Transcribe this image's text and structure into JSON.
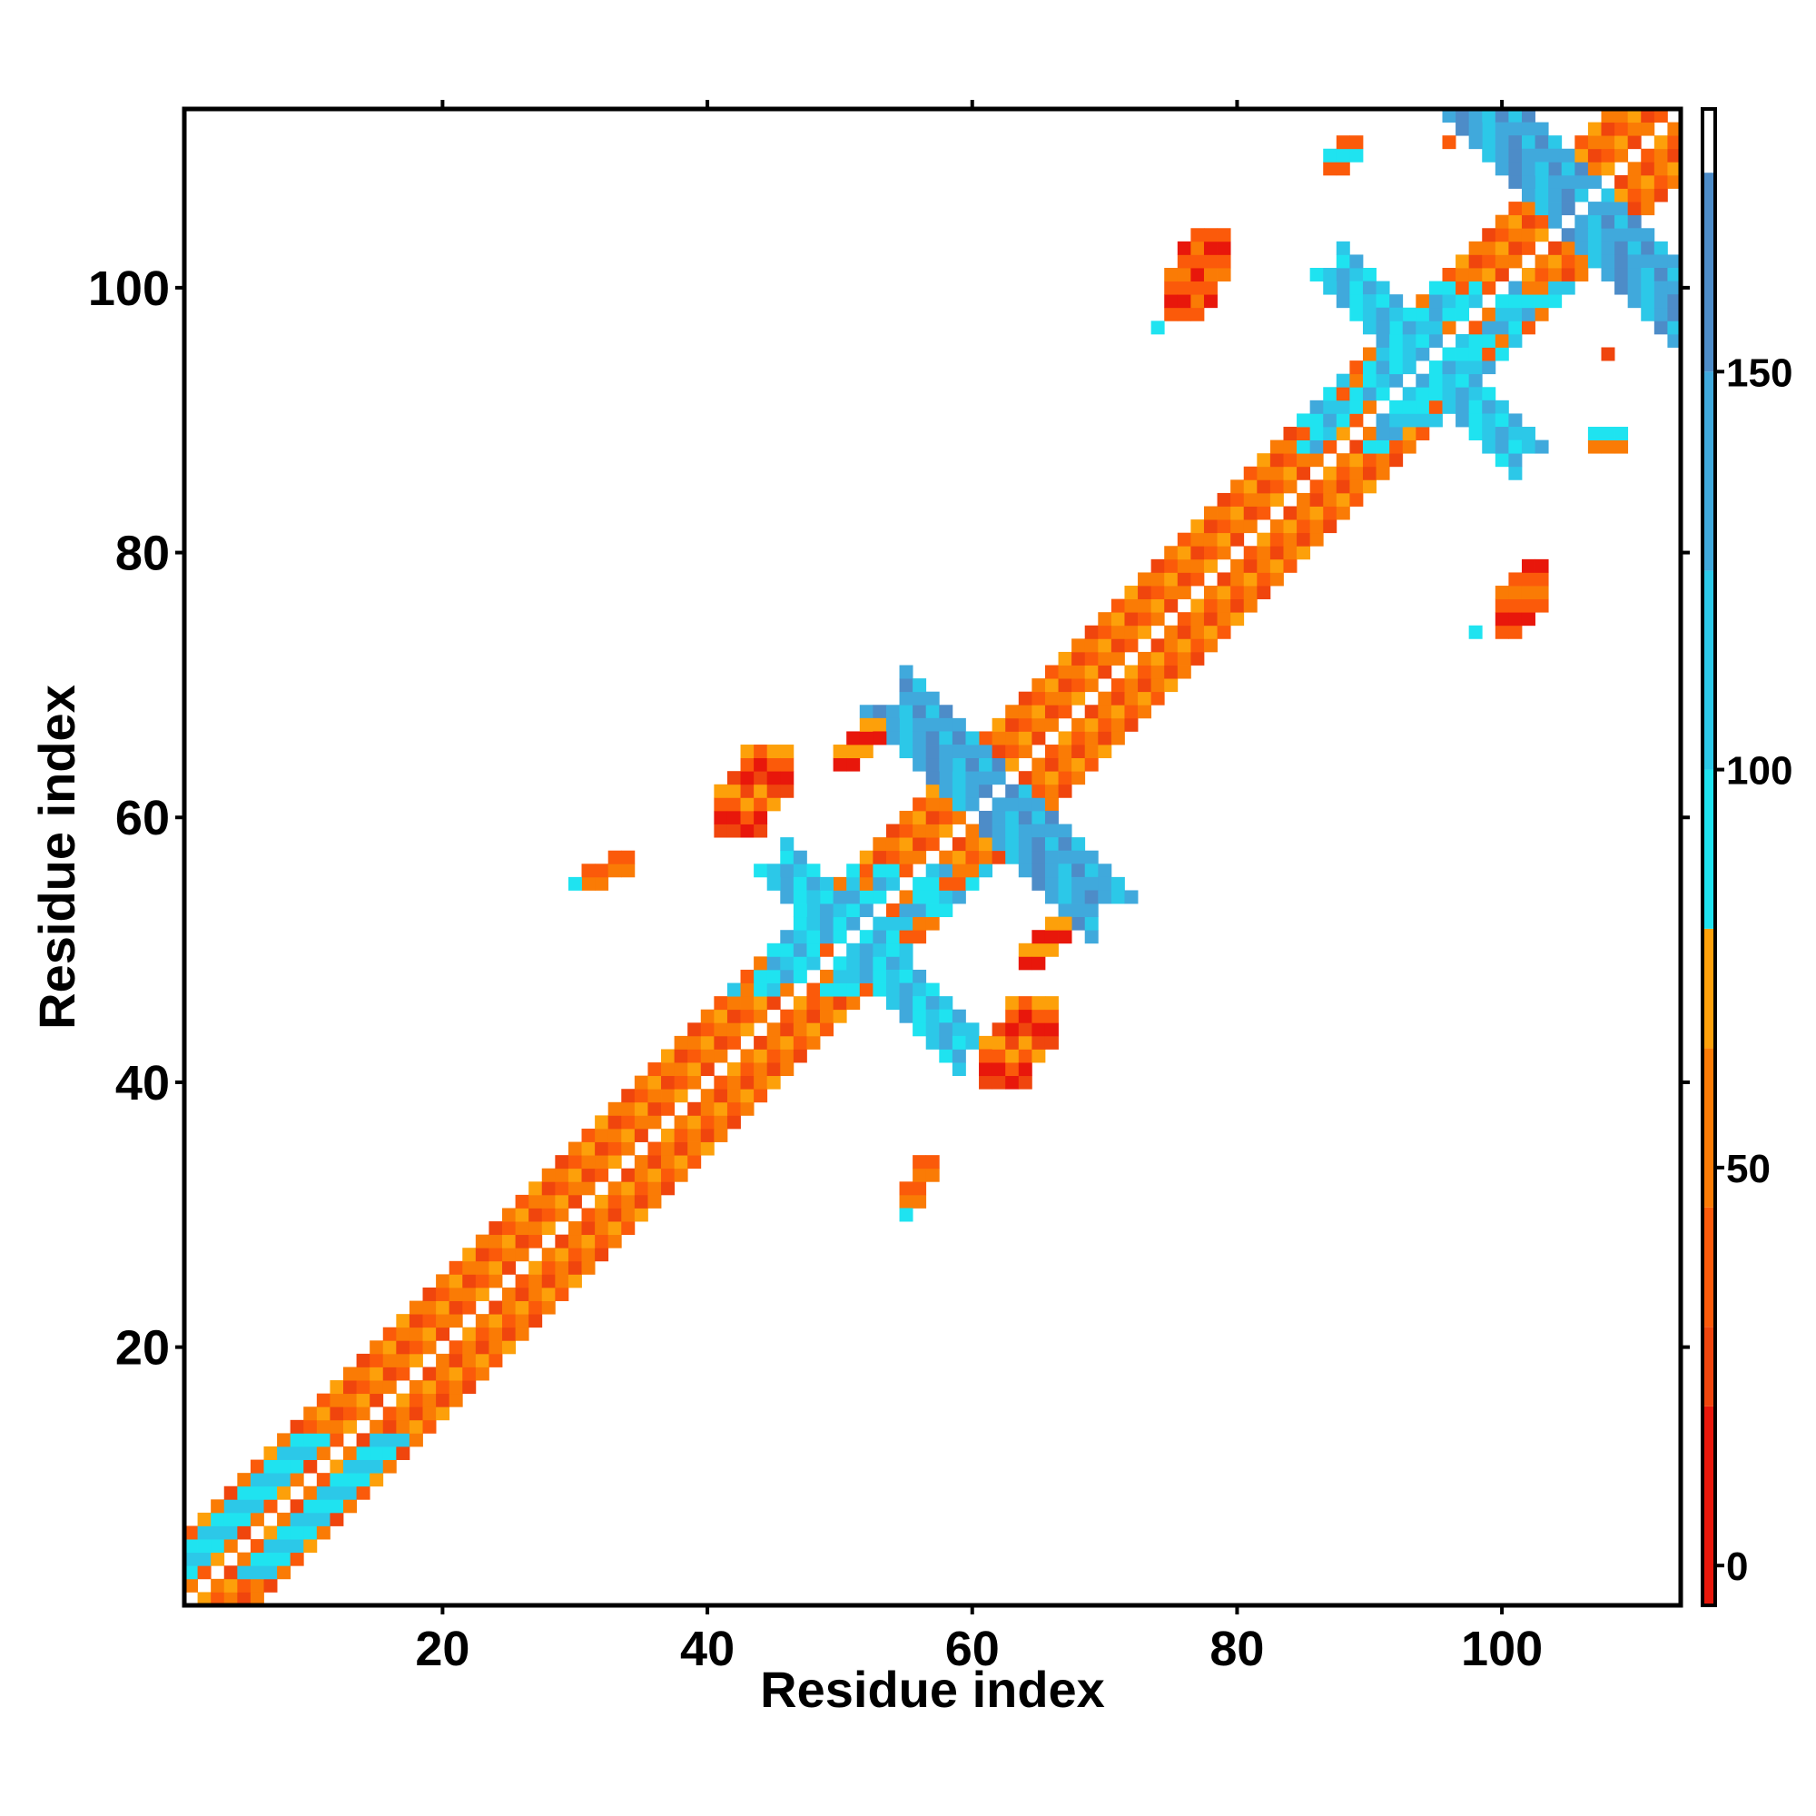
{
  "chart_data": {
    "type": "heatmap",
    "xlabel": "Residue index",
    "ylabel": "Residue index",
    "xlim": [
      1,
      113
    ],
    "ylim": [
      1,
      113
    ],
    "x_ticks": [
      20,
      40,
      60,
      80,
      100
    ],
    "y_ticks": [
      20,
      40,
      60,
      80,
      100
    ],
    "colorbar": {
      "range": [
        -5,
        183
      ],
      "ticks": [
        0,
        50,
        100,
        150
      ],
      "stops": [
        {
          "from": -5,
          "to": 20,
          "color": "#e8170b"
        },
        {
          "from": 20,
          "to": 30,
          "color": "#f0450d"
        },
        {
          "from": 30,
          "to": 45,
          "color": "#fb5a0a"
        },
        {
          "from": 45,
          "to": 65,
          "color": "#fa7b05"
        },
        {
          "from": 65,
          "to": 80,
          "color": "#fda00a"
        },
        {
          "from": 80,
          "to": 100,
          "color": "#1fe3f0"
        },
        {
          "from": 100,
          "to": 125,
          "color": "#2cc8e8"
        },
        {
          "from": 125,
          "to": 150,
          "color": "#40a9dc"
        },
        {
          "from": 150,
          "to": 175,
          "color": "#4d8cc8"
        },
        {
          "from": 175,
          "to": 183,
          "color": "#ffffff"
        }
      ]
    },
    "categories": {
      "R": "#e8170b",
      "r": "#f0450d",
      "o": "#fb5a0a",
      "O": "#fa7b05",
      "y": "#fda00a",
      "c": "#1fe3f0",
      "b": "#2cc8e8",
      "B": "#40a9dc",
      "D": "#4d8cc8"
    },
    "series": [
      {
        "name": "diagonal",
        "start": [
          1,
          1
        ],
        "end": [
          113,
          113
        ],
        "offsets": [
          -5,
          -4,
          -3,
          -2,
          -1,
          1,
          2,
          3,
          4,
          5
        ],
        "pattern": "oyOrOoyOrO",
        "pattern_beta": "cboOcBcboO"
      },
      {
        "name": "helix_1_band",
        "start": [
          3,
          3
        ],
        "end": [
          13,
          13
        ],
        "offsets": [
          -4,
          -3,
          -2,
          2,
          3,
          4
        ],
        "pattern": "cbcbcb"
      },
      {
        "name": "helix_2_band",
        "start": [
          47,
          47
        ],
        "end": [
          54,
          54
        ],
        "offsets": [
          -3,
          -2,
          2,
          3
        ],
        "pattern": "cbBc"
      },
      {
        "name": "helix_3_band",
        "start": [
          88,
          88
        ],
        "end": [
          99,
          99
        ],
        "offsets": [
          -3,
          -2,
          2,
          3
        ],
        "pattern": "cBbc"
      },
      {
        "name": "antidiagonal_60",
        "start": [
          55,
          68
        ],
        "end": [
          67,
          54
        ],
        "width": 3,
        "pattern": "bBDB"
      },
      {
        "name": "antidiagonal_105",
        "start": [
          99,
          113
        ],
        "end": [
          113,
          98
        ],
        "width": 3,
        "pattern": "bBDB"
      },
      {
        "name": "antidiagonal_52",
        "start": [
          46,
          56
        ],
        "end": [
          57,
          43
        ],
        "width": 2,
        "pattern": "cbB"
      },
      {
        "name": "antidiagonal_95",
        "start": [
          88,
          101
        ],
        "end": [
          101,
          88
        ],
        "width": 2,
        "pattern": "cbB"
      }
    ],
    "patches": [
      {
        "x": [
          100,
          103
        ],
        "y": [
          74,
          79
        ],
        "pattern": "oRoO"
      },
      {
        "x": [
          98,
          98
        ],
        "y": [
          74,
          74
        ],
        "pattern": "c"
      },
      {
        "x": [
          75,
          79
        ],
        "y": [
          98,
          104
        ],
        "pattern": "oRoO"
      },
      {
        "x": [
          74,
          74
        ],
        "y": [
          97,
          97
        ],
        "pattern": "c"
      },
      {
        "x": [
          41,
          46
        ],
        "y": [
          59,
          65
        ],
        "pattern": "rRoy"
      },
      {
        "x": [
          50,
          53
        ],
        "y": [
          64,
          67
        ],
        "pattern": "Ry"
      },
      {
        "x": [
          31,
          34
        ],
        "y": [
          55,
          57
        ],
        "pattern": "Oo"
      },
      {
        "x": [
          30,
          30
        ],
        "y": [
          55,
          55
        ],
        "pattern": "c"
      },
      {
        "x": [
          55,
          57
        ],
        "y": [
          31,
          34
        ],
        "pattern": "Oo"
      },
      {
        "x": [
          55,
          55
        ],
        "y": [
          30,
          30
        ],
        "pattern": "c"
      },
      {
        "x": [
          61,
          66
        ],
        "y": [
          40,
          46
        ],
        "pattern": "rRoy"
      },
      {
        "x": [
          64,
          67
        ],
        "y": [
          49,
          52
        ],
        "pattern": "Ry"
      },
      {
        "x": [
          87,
          89
        ],
        "y": [
          109,
          111
        ],
        "pattern": "oc"
      },
      {
        "x": [
          107,
          109
        ],
        "y": [
          88,
          89
        ],
        "pattern": "Oc"
      },
      {
        "x": [
          96,
          96
        ],
        "y": [
          111,
          111
        ],
        "pattern": "o"
      },
      {
        "x": [
          108,
          108
        ],
        "y": [
          95,
          95
        ],
        "pattern": "r"
      }
    ]
  }
}
